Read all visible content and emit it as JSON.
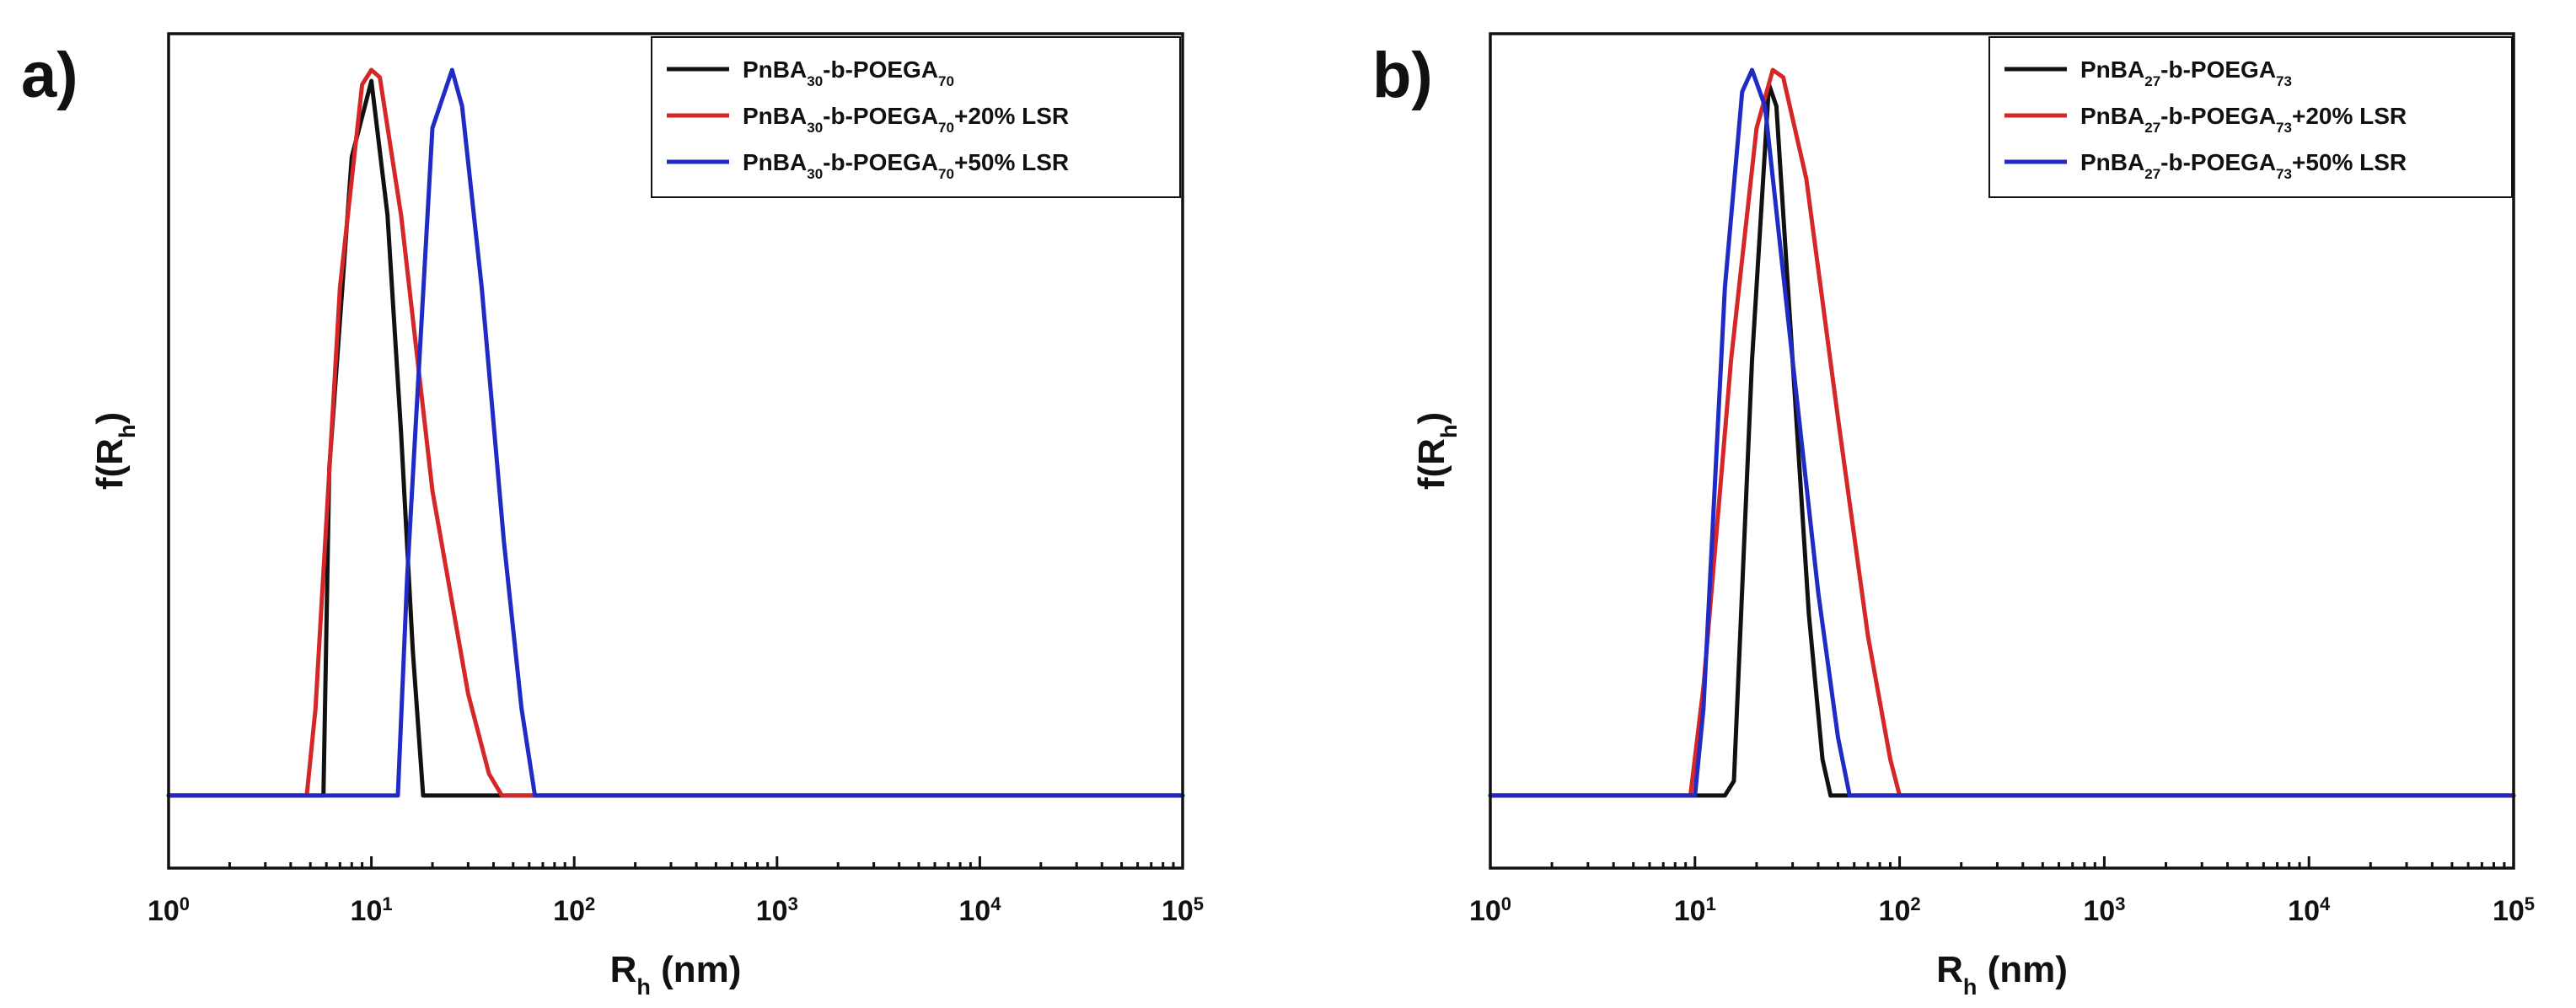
{
  "chart_data": [
    {
      "type": "line",
      "panel_label": "a)",
      "xlabel": "R",
      "xlabel_sub": "h",
      "xlabel_suffix": " (nm)",
      "ylabel": "f(R",
      "ylabel_sub": "h",
      "ylabel_suffix": ")",
      "xscale": "log",
      "xlim": [
        1,
        100000
      ],
      "ylim": [
        -0.1,
        1.05
      ],
      "yticks_visible": false,
      "legend_position": "top-right",
      "xticks": [
        {
          "value": 1,
          "base": "10",
          "exp": "0"
        },
        {
          "value": 10,
          "base": "10",
          "exp": "1"
        },
        {
          "value": 100,
          "base": "10",
          "exp": "2"
        },
        {
          "value": 1000,
          "base": "10",
          "exp": "3"
        },
        {
          "value": 10000,
          "base": "10",
          "exp": "4"
        },
        {
          "value": 100000,
          "base": "10",
          "exp": "5"
        }
      ],
      "series": [
        {
          "label": "PnBA30-b-POEGA70",
          "legend": [
            {
              "t": "PnBA",
              "sub": false
            },
            {
              "t": "30",
              "sub": true
            },
            {
              "t": "-b-POEGA",
              "sub": false
            },
            {
              "t": "70",
              "sub": true
            }
          ],
          "color": "#111111",
          "x": [
            1,
            5.8,
            6.2,
            8,
            10,
            12,
            14,
            16,
            18,
            100000
          ],
          "y": [
            0,
            0,
            0.45,
            0.88,
            0.985,
            0.8,
            0.5,
            0.2,
            0,
            0
          ]
        },
        {
          "label": "PnBA30-b-POEGA70+20% LSR",
          "legend": [
            {
              "t": "PnBA",
              "sub": false
            },
            {
              "t": "30",
              "sub": true
            },
            {
              "t": "-b-POEGA",
              "sub": false
            },
            {
              "t": "70",
              "sub": true
            },
            {
              "t": "+20% LSR",
              "sub": false
            }
          ],
          "color": "#d62728",
          "x": [
            1,
            4.8,
            5.3,
            7,
            9,
            10,
            11,
            14,
            20,
            30,
            38,
            44,
            100000
          ],
          "y": [
            0,
            0,
            0.12,
            0.7,
            0.98,
            1.0,
            0.99,
            0.8,
            0.42,
            0.14,
            0.03,
            0,
            0
          ]
        },
        {
          "label": "PnBA30-b-POEGA70+50% LSR",
          "legend": [
            {
              "t": "PnBA",
              "sub": false
            },
            {
              "t": "30",
              "sub": true
            },
            {
              "t": "-b-POEGA",
              "sub": false
            },
            {
              "t": "70",
              "sub": true
            },
            {
              "t": "+50% LSR",
              "sub": false
            }
          ],
          "color": "#1f2bc4",
          "x": [
            1,
            13.5,
            15,
            20,
            25,
            28,
            35,
            45,
            55,
            64,
            100000
          ],
          "y": [
            0,
            0,
            0.3,
            0.92,
            1.0,
            0.95,
            0.7,
            0.35,
            0.12,
            0,
            0
          ]
        }
      ]
    },
    {
      "type": "line",
      "panel_label": "b)",
      "xlabel": "R",
      "xlabel_sub": "h",
      "xlabel_suffix": " (nm)",
      "ylabel": "f(R",
      "ylabel_sub": "h",
      "ylabel_suffix": ")",
      "xscale": "log",
      "xlim": [
        1,
        100000
      ],
      "ylim": [
        -0.1,
        1.05
      ],
      "yticks_visible": false,
      "legend_position": "top-right",
      "xticks": [
        {
          "value": 1,
          "base": "10",
          "exp": "0"
        },
        {
          "value": 10,
          "base": "10",
          "exp": "1"
        },
        {
          "value": 100,
          "base": "10",
          "exp": "2"
        },
        {
          "value": 1000,
          "base": "10",
          "exp": "3"
        },
        {
          "value": 10000,
          "base": "10",
          "exp": "4"
        },
        {
          "value": 100000,
          "base": "10",
          "exp": "5"
        }
      ],
      "series": [
        {
          "label": "PnBA27-b-POEGA73",
          "legend": [
            {
              "t": "PnBA",
              "sub": false
            },
            {
              "t": "27",
              "sub": true
            },
            {
              "t": "-b-POEGA",
              "sub": false
            },
            {
              "t": "73",
              "sub": true
            }
          ],
          "color": "#111111",
          "x": [
            1,
            14,
            15.5,
            19,
            23,
            25,
            30,
            36,
            42,
            46,
            100000
          ],
          "y": [
            0,
            0,
            0.02,
            0.6,
            0.98,
            0.95,
            0.6,
            0.25,
            0.05,
            0,
            0
          ]
        },
        {
          "label": "PnBA27-b-POEGA73+20% LSR",
          "legend": [
            {
              "t": "PnBA",
              "sub": false
            },
            {
              "t": "27",
              "sub": true
            },
            {
              "t": "-b-POEGA",
              "sub": false
            },
            {
              "t": "73",
              "sub": true
            },
            {
              "t": "+20% LSR",
              "sub": false
            }
          ],
          "color": "#d62728",
          "x": [
            1,
            9.5,
            11,
            15,
            20,
            24,
            27,
            35,
            50,
            70,
            90,
            100,
            100000
          ],
          "y": [
            0,
            0,
            0.15,
            0.6,
            0.92,
            1.0,
            0.99,
            0.85,
            0.52,
            0.22,
            0.05,
            0,
            0
          ]
        },
        {
          "label": "PnBA27-b-POEGA73+50% LSR",
          "legend": [
            {
              "t": "PnBA",
              "sub": false
            },
            {
              "t": "27",
              "sub": true
            },
            {
              "t": "-b-POEGA",
              "sub": false
            },
            {
              "t": "73",
              "sub": true
            },
            {
              "t": "+50% LSR",
              "sub": false
            }
          ],
          "color": "#1f2bc4",
          "x": [
            1,
            10,
            11,
            14,
            17,
            19,
            22,
            30,
            40,
            50,
            57,
            100000
          ],
          "y": [
            0,
            0,
            0.12,
            0.7,
            0.97,
            1.0,
            0.95,
            0.6,
            0.28,
            0.08,
            0,
            0
          ]
        }
      ]
    }
  ]
}
